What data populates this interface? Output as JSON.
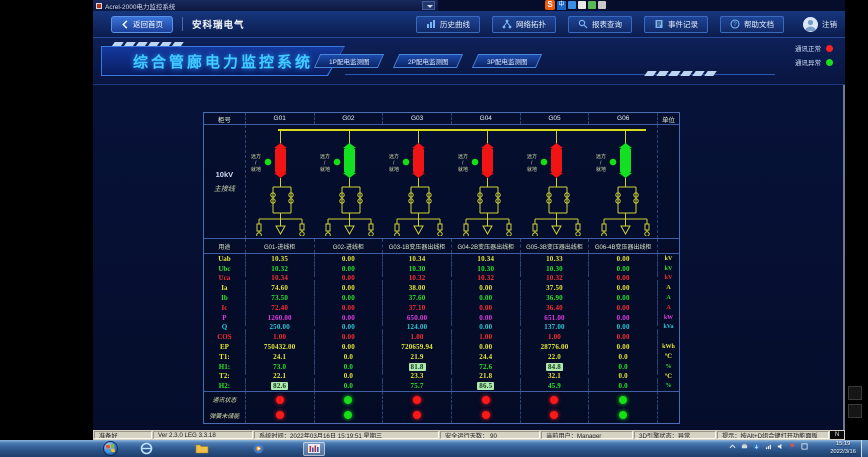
{
  "window": {
    "title": "Acrel-2000电力监控系统"
  },
  "input_bar": {
    "brand": "S",
    "mode": "中"
  },
  "nav": {
    "home": "返回首页",
    "brand": "安科瑞电气",
    "buttons": [
      {
        "label": "历史曲线",
        "icon": "chart-icon"
      },
      {
        "label": "网络拓扑",
        "icon": "topology-icon"
      },
      {
        "label": "报表查询",
        "icon": "search-icon"
      },
      {
        "label": "事件记录",
        "icon": "event-icon"
      },
      {
        "label": "帮助文档",
        "icon": "help-icon"
      }
    ],
    "logout": "注销"
  },
  "banner": {
    "title": "综合管廊电力监控系统",
    "tabs": [
      "1P配电监测图",
      "2P配电监测图",
      "3P配电监测图"
    ],
    "legend": [
      {
        "label": "通讯正常",
        "color": "#ff2020"
      },
      {
        "label": "通讯异常",
        "color": "#1ae01a"
      }
    ]
  },
  "diagram": {
    "voltage_label_1": "10kV",
    "voltage_label_2": "主接线",
    "remote_local_line1": "远方",
    "remote_local_line2": "就地",
    "bays": [
      {
        "id": "G01",
        "breaker": "closed"
      },
      {
        "id": "G02",
        "breaker": "open"
      },
      {
        "id": "G03",
        "breaker": "closed"
      },
      {
        "id": "G04",
        "breaker": "closed"
      },
      {
        "id": "G05",
        "breaker": "closed"
      },
      {
        "id": "G06",
        "breaker": "open"
      }
    ]
  },
  "table": {
    "col_header_label": "柜号",
    "unit_header_label": "单位",
    "usage_label": "用途",
    "columns": [
      "G01",
      "G02",
      "G03",
      "G04",
      "G05",
      "G06"
    ],
    "usages": [
      "G01-进线柜",
      "G02-进线柜",
      "G03-1B变压器出线柜",
      "G04-2B变压器出线柜",
      "G05-3B变压器出线柜",
      "G06-4B变压器出线柜"
    ],
    "rows": [
      {
        "label": "Uab",
        "unit": "kV",
        "color": "yellow",
        "values": [
          "10.35",
          "0.00",
          "10.34",
          "10.34",
          "10.33",
          "0.00"
        ]
      },
      {
        "label": "Ubc",
        "unit": "kV",
        "color": "green",
        "values": [
          "10.32",
          "0.00",
          "10.30",
          "10.30",
          "10.30",
          "0.00"
        ]
      },
      {
        "label": "Uca",
        "unit": "kV",
        "color": "red",
        "values": [
          "10.34",
          "0.00",
          "10.32",
          "10.32",
          "10.32",
          "0.00"
        ]
      },
      {
        "label": "Ia",
        "unit": "A",
        "color": "yellow",
        "values": [
          "74.60",
          "0.00",
          "38.00",
          "0.00",
          "37.50",
          "0.00"
        ]
      },
      {
        "label": "Ib",
        "unit": "A",
        "color": "green",
        "values": [
          "73.50",
          "0.00",
          "37.60",
          "0.00",
          "36.90",
          "0.00"
        ]
      },
      {
        "label": "Ic",
        "unit": "A",
        "color": "red",
        "values": [
          "72.40",
          "0.00",
          "37.10",
          "0.00",
          "36.40",
          "0.00"
        ]
      },
      {
        "label": "P",
        "unit": "kW",
        "color": "magenta",
        "values": [
          "1260.00",
          "0.00",
          "650.00",
          "0.00",
          "651.00",
          "0.00"
        ]
      },
      {
        "label": "Q",
        "unit": "kVa",
        "color": "cyan",
        "values": [
          "250.00",
          "0.00",
          "124.00",
          "0.00",
          "137.00",
          "0.00"
        ]
      },
      {
        "label": "COS",
        "unit": "",
        "color": "red",
        "values": [
          "1.00",
          "0.00",
          "1.00",
          "1.00",
          "1.00",
          "0.00"
        ]
      },
      {
        "label": "EP",
        "unit": "kWh",
        "color": "yellow",
        "values": [
          "750432.00",
          "0.00",
          "720659.94",
          "0.00",
          "28776.00",
          "0.00"
        ]
      },
      {
        "label": "T1:",
        "unit": "℃",
        "color": "yellow",
        "values": [
          "24.1",
          "0.0",
          "21.9",
          "24.4",
          "22.0",
          "0.0"
        ]
      },
      {
        "label": "H1:",
        "unit": "%",
        "color": "green",
        "values": [
          "73.0",
          "0.0",
          "81.8",
          "72.6",
          "84.8",
          "0.0"
        ],
        "highlights": [
          2,
          4
        ]
      },
      {
        "label": "T2:",
        "unit": "℃",
        "color": "yellow",
        "values": [
          "22.1",
          "0.0",
          "23.3",
          "21.8",
          "32.1",
          "0.0"
        ]
      },
      {
        "label": "H2:",
        "unit": "%",
        "color": "green",
        "values": [
          "82.6",
          "0.0",
          "75.7",
          "86.5",
          "45.9",
          "0.0"
        ],
        "highlights": [
          0,
          3
        ]
      }
    ],
    "comm_row": {
      "label": "通讯状态",
      "states": [
        "red",
        "green",
        "red",
        "red",
        "red",
        "green"
      ]
    },
    "spring_row": {
      "label": "弹簧未储能",
      "states": [
        "red",
        "green",
        "red",
        "red",
        "red",
        "green"
      ]
    }
  },
  "status_bar": {
    "ready": "准备好",
    "version": "Ver 2.3.0 LEG 3.3.18",
    "system_time": "系统时间：2022年03月16日  15:19:51  星期三",
    "safe_days": "安全运行天数： 90",
    "current_user": "当前用户：Manager",
    "engine": "3D引擎状态：异常",
    "tip": "提示：按Alt+D组合键打开功能面板",
    "n_badge": "N"
  },
  "taskbar": {
    "clock_time": "15:19",
    "clock_date": "2022/3/16"
  },
  "colors": {
    "breaker_closed": "#f01414",
    "breaker_open": "#12e020",
    "diagram_line": "#cfd235",
    "dot_red": "#ff1818",
    "dot_green": "#14e014"
  }
}
